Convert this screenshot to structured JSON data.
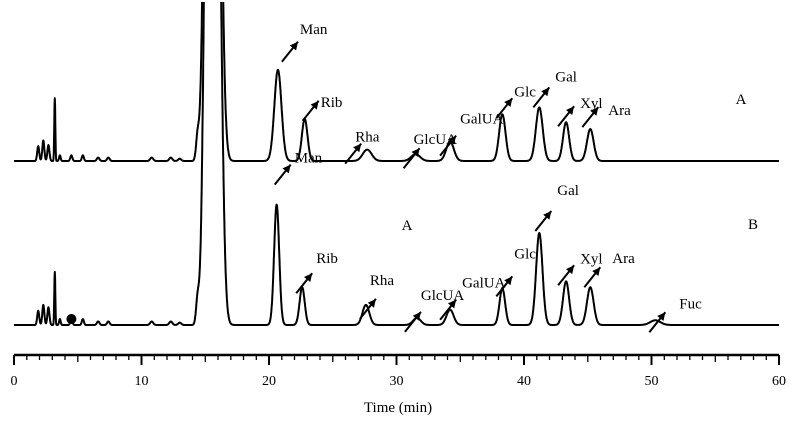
{
  "chart_data": {
    "type": "line",
    "xlabel": "Time (min)",
    "xlim": [
      0,
      60
    ],
    "xticks": [
      0,
      10,
      20,
      30,
      40,
      50,
      60
    ],
    "series": [
      {
        "name": "A",
        "peaks": [
          {
            "t": 1.9,
            "h": 0.13,
            "w": 0.08
          },
          {
            "t": 2.3,
            "h": 0.18,
            "w": 0.08
          },
          {
            "t": 2.7,
            "h": 0.14,
            "w": 0.08
          },
          {
            "t": 3.2,
            "h": 0.55,
            "w": 0.04
          },
          {
            "t": 3.6,
            "h": 0.05,
            "w": 0.06
          },
          {
            "t": 4.5,
            "h": 0.05,
            "w": 0.08
          },
          {
            "t": 5.4,
            "h": 0.05,
            "w": 0.08
          },
          {
            "t": 6.6,
            "h": 0.03,
            "w": 0.1
          },
          {
            "t": 7.4,
            "h": 0.03,
            "w": 0.1
          },
          {
            "t": 10.8,
            "h": 0.03,
            "w": 0.12
          },
          {
            "t": 12.3,
            "h": 0.03,
            "w": 0.12
          },
          {
            "t": 13.0,
            "h": 0.02,
            "w": 0.12
          },
          {
            "t": 14.4,
            "h": 0.2,
            "w": 0.12
          },
          {
            "t": 15.2,
            "h": 5.0,
            "w": 0.28
          },
          {
            "t": 15.9,
            "h": 5.0,
            "w": 0.32
          },
          {
            "t": 20.7,
            "h": 0.8,
            "w": 0.28
          },
          {
            "t": 22.8,
            "h": 0.37,
            "w": 0.22
          },
          {
            "t": 27.7,
            "h": 0.1,
            "w": 0.35
          },
          {
            "t": 31.5,
            "h": 0.06,
            "w": 0.35
          },
          {
            "t": 34.2,
            "h": 0.17,
            "w": 0.3
          },
          {
            "t": 38.3,
            "h": 0.41,
            "w": 0.25
          },
          {
            "t": 41.2,
            "h": 0.47,
            "w": 0.27
          },
          {
            "t": 43.3,
            "h": 0.34,
            "w": 0.24
          },
          {
            "t": 45.2,
            "h": 0.28,
            "w": 0.26
          }
        ],
        "labels": [
          {
            "text": "Man",
            "t": 20.7
          },
          {
            "text": "Rib",
            "t": 22.8
          },
          {
            "text": "Rha",
            "t": 27.7
          },
          {
            "text": "GlcUA",
            "t": 31.5
          },
          {
            "text": "GalUA",
            "t": 34.2
          },
          {
            "text": "Glc",
            "t": 38.3
          },
          {
            "text": "Gal",
            "t": 41.2
          },
          {
            "text": "Xyl",
            "t": 43.3
          },
          {
            "text": "Ara",
            "t": 45.2
          }
        ]
      },
      {
        "name": "B",
        "peaks": [
          {
            "t": 1.9,
            "h": 0.12,
            "w": 0.08
          },
          {
            "t": 2.3,
            "h": 0.17,
            "w": 0.08
          },
          {
            "t": 2.7,
            "h": 0.15,
            "w": 0.08
          },
          {
            "t": 3.2,
            "h": 0.45,
            "w": 0.04
          },
          {
            "t": 3.6,
            "h": 0.05,
            "w": 0.06
          },
          {
            "t": 4.5,
            "h": 0.05,
            "w": 0.08
          },
          {
            "t": 5.4,
            "h": 0.05,
            "w": 0.08
          },
          {
            "t": 6.6,
            "h": 0.03,
            "w": 0.1
          },
          {
            "t": 7.4,
            "h": 0.03,
            "w": 0.1
          },
          {
            "t": 10.8,
            "h": 0.03,
            "w": 0.12
          },
          {
            "t": 12.3,
            "h": 0.03,
            "w": 0.12
          },
          {
            "t": 13.0,
            "h": 0.02,
            "w": 0.12
          },
          {
            "t": 14.4,
            "h": 0.2,
            "w": 0.12
          },
          {
            "t": 15.2,
            "h": 5.0,
            "w": 0.28
          },
          {
            "t": 15.9,
            "h": 5.0,
            "w": 0.32
          },
          {
            "t": 20.6,
            "h": 1.02,
            "w": 0.2
          },
          {
            "t": 22.6,
            "h": 0.32,
            "w": 0.2
          },
          {
            "t": 27.6,
            "h": 0.17,
            "w": 0.27
          },
          {
            "t": 31.6,
            "h": 0.06,
            "w": 0.3
          },
          {
            "t": 34.2,
            "h": 0.13,
            "w": 0.28
          },
          {
            "t": 38.3,
            "h": 0.31,
            "w": 0.22
          },
          {
            "t": 41.2,
            "h": 0.78,
            "w": 0.25
          },
          {
            "t": 43.3,
            "h": 0.37,
            "w": 0.24
          },
          {
            "t": 45.2,
            "h": 0.32,
            "w": 0.26
          },
          {
            "t": 50.3,
            "h": 0.04,
            "w": 0.4
          }
        ],
        "labels": [
          {
            "text": "Man",
            "t": 20.6
          },
          {
            "text": "Rib",
            "t": 22.6
          },
          {
            "text": "Rha",
            "t": 27.6
          },
          {
            "text": "GlcUA",
            "t": 31.6
          },
          {
            "text": "GalUA",
            "t": 34.2
          },
          {
            "text": "Glc",
            "t": 38.3
          },
          {
            "text": "Gal",
            "t": 41.2
          },
          {
            "text": "Xyl",
            "t": 43.3
          },
          {
            "text": "Ara",
            "t": 45.2
          },
          {
            "text": "Fuc",
            "t": 50.3
          }
        ],
        "marker": {
          "t": 4.5,
          "symbol": "filled-circle"
        },
        "annotation": "A"
      }
    ],
    "grid": false
  }
}
